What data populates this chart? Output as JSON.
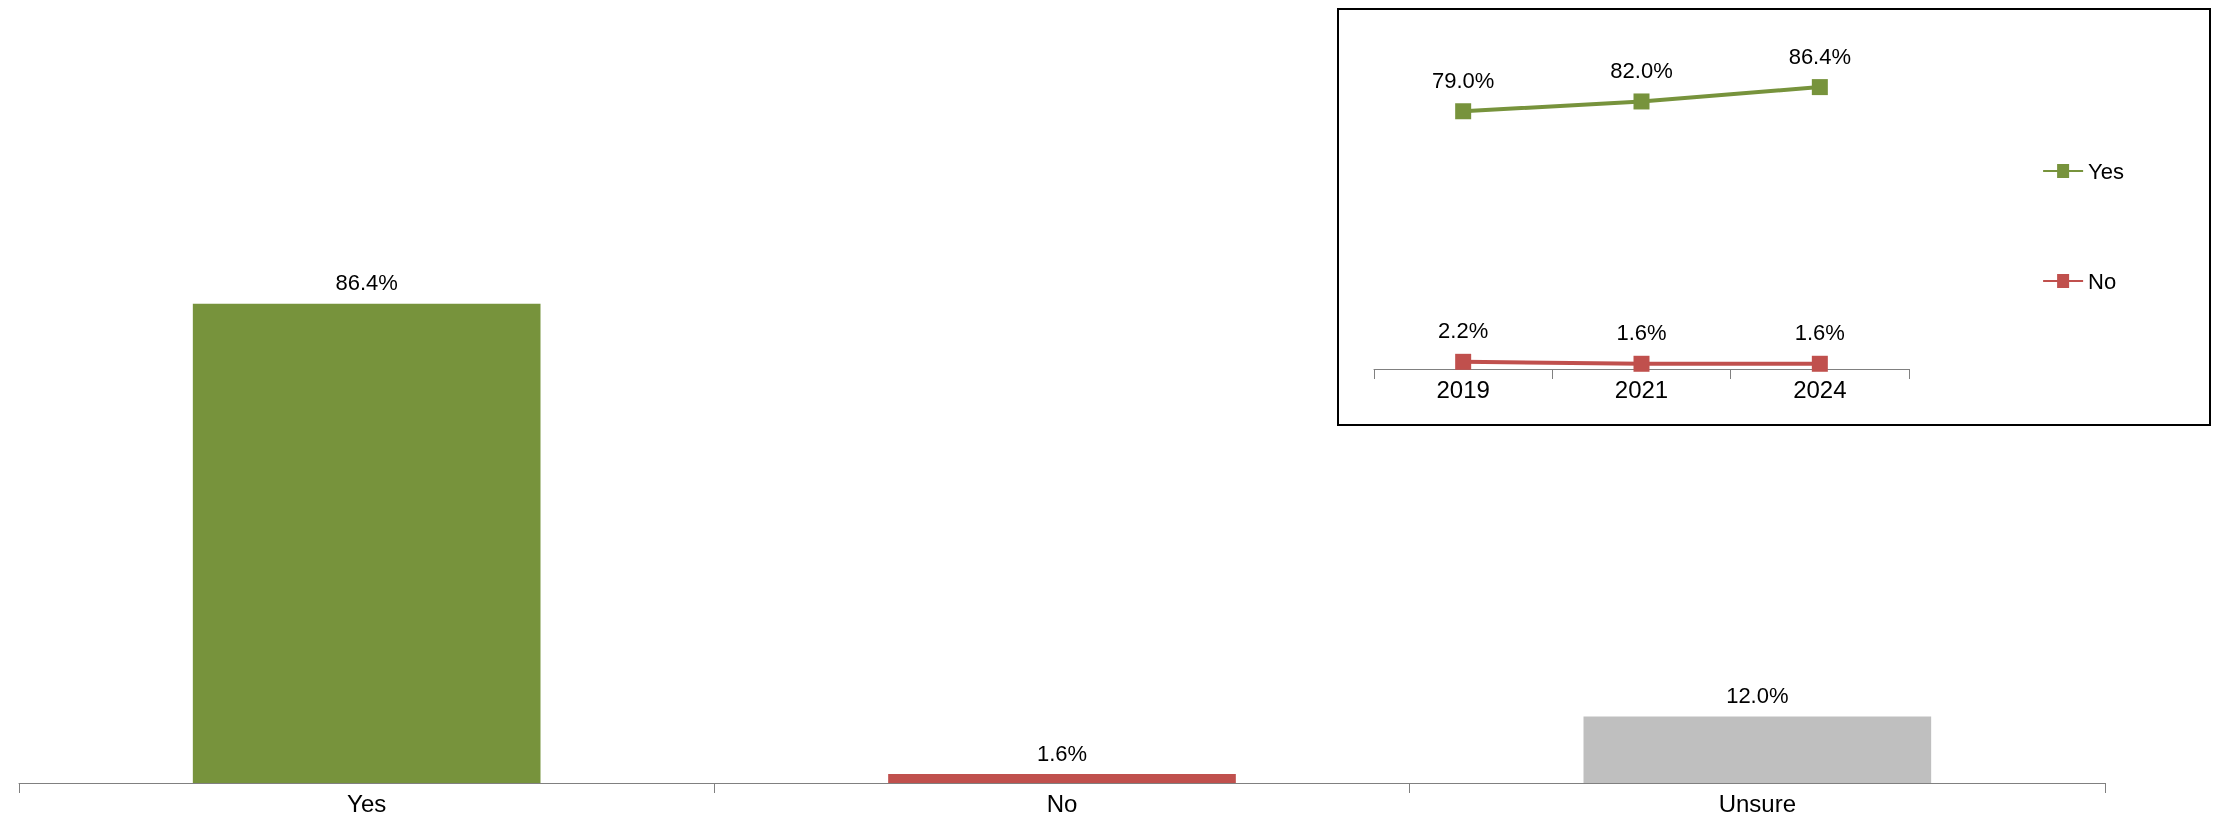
{
  "chart_data": [
    {
      "type": "bar",
      "categories": [
        "Yes",
        "No",
        "Unsure"
      ],
      "values": [
        86.4,
        1.6,
        12.0
      ],
      "colors": [
        "#77933c",
        "#c0504d",
        "#bfbfbf"
      ],
      "value_labels": [
        "86.4%",
        "1.6%",
        "12.0%"
      ],
      "legend": false
    },
    {
      "type": "line",
      "categories": [
        "2019",
        "2021",
        "2024"
      ],
      "series": [
        {
          "name": "Yes",
          "color": "#77933c",
          "values": [
            79.0,
            82.0,
            86.4
          ],
          "value_labels": [
            "79.0%",
            "82.0%",
            "86.4%"
          ]
        },
        {
          "name": "No",
          "color": "#c0504d",
          "values": [
            2.2,
            1.6,
            1.6
          ],
          "value_labels": [
            "2.2%",
            "1.6%",
            "1.6%"
          ]
        }
      ],
      "marker": "square",
      "legend": "right"
    }
  ]
}
